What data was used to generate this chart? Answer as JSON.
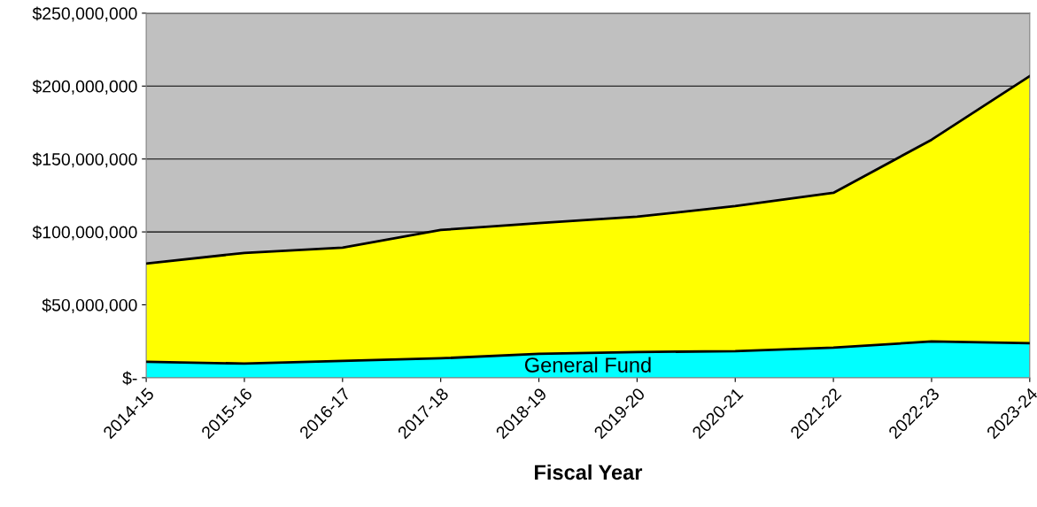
{
  "chart_data": {
    "type": "area",
    "stacked": true,
    "xlabel": "Fiscal Year",
    "categories": [
      "2014-15",
      "2015-16",
      "2016-17",
      "2017-18",
      "2018-19",
      "2019-20",
      "2020-21",
      "2021-22",
      "2022-23",
      "2023-24"
    ],
    "series": [
      {
        "name": "General Fund",
        "color": "#00ffff",
        "values": [
          10900000,
          9700000,
          11500000,
          13300000,
          16400000,
          17600000,
          18200000,
          20600000,
          24900000,
          23700000
        ]
      },
      {
        "color": "#ffff00",
        "values": [
          67400000,
          75900000,
          77700000,
          88000000,
          89600000,
          92800000,
          99500000,
          106200000,
          138300000,
          183200000
        ]
      }
    ],
    "ylim": [
      0,
      250000000
    ],
    "yticks": [
      {
        "value": 0,
        "label": "$-"
      },
      {
        "value": 50000000,
        "label": "$50,000,000"
      },
      {
        "value": 100000000,
        "label": "$100,000,000"
      },
      {
        "value": 150000000,
        "label": "$150,000,000"
      },
      {
        "value": 200000000,
        "label": "$200,000,000"
      },
      {
        "value": 250000000,
        "label": "$250,000,000"
      }
    ],
    "grid": "y"
  }
}
